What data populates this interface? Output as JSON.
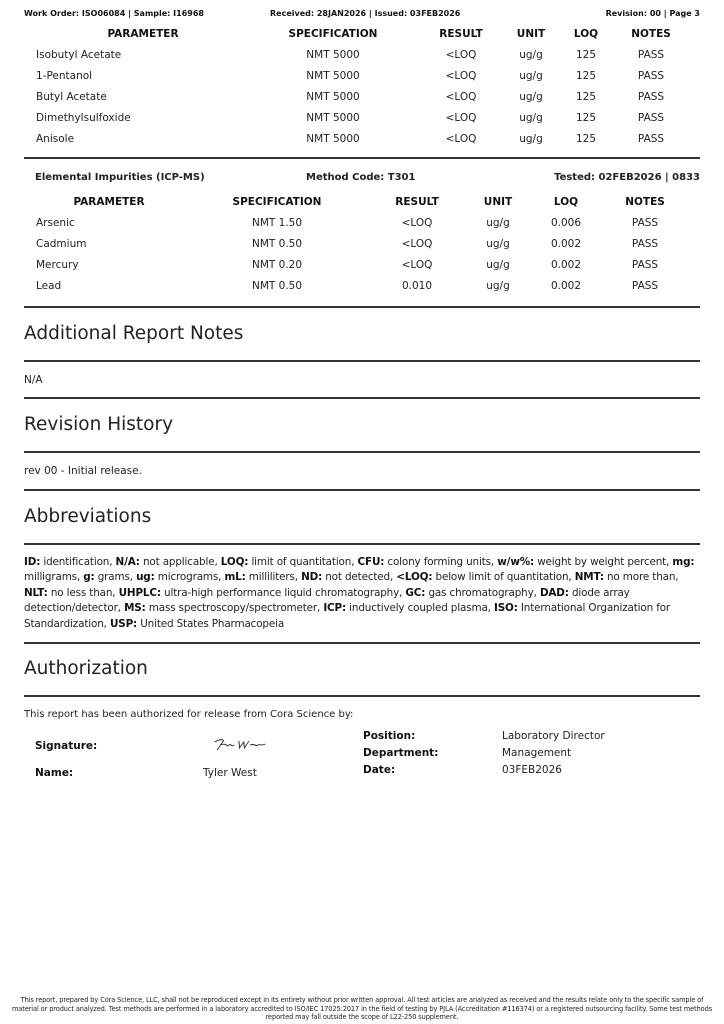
{
  "header": {
    "left": "Work Order: ISO06084 | Sample: I16968",
    "center": "Received: 28JAN2026 | Issued: 03FEB2026",
    "right": "Revision: 00 | Page 3"
  },
  "table1": {
    "columns": [
      "PARAMETER",
      "SPECIFICATION",
      "RESULT",
      "UNIT",
      "LOQ",
      "NOTES"
    ],
    "rows": [
      [
        "Isobutyl Acetate",
        "NMT 5000",
        "<LOQ",
        "ug/g",
        "125",
        "PASS"
      ],
      [
        "1-Pentanol",
        "NMT 5000",
        "<LOQ",
        "ug/g",
        "125",
        "PASS"
      ],
      [
        "Butyl Acetate",
        "NMT 5000",
        "<LOQ",
        "ug/g",
        "125",
        "PASS"
      ],
      [
        "Dimethylsulfoxide",
        "NMT 5000",
        "<LOQ",
        "ug/g",
        "125",
        "PASS"
      ],
      [
        "Anisole",
        "NMT 5000",
        "<LOQ",
        "ug/g",
        "125",
        "PASS"
      ]
    ]
  },
  "section2": {
    "title": "Elemental Impurities (ICP-MS)",
    "method": "Method Code: T301",
    "tested": "Tested: 02FEB2026 | 0833"
  },
  "table2": {
    "columns": [
      "PARAMETER",
      "SPECIFICATION",
      "RESULT",
      "UNIT",
      "LOQ",
      "NOTES"
    ],
    "rows": [
      [
        "Arsenic",
        "NMT 1.50",
        "<LOQ",
        "ug/g",
        "0.006",
        "PASS"
      ],
      [
        "Cadmium",
        "NMT 0.50",
        "<LOQ",
        "ug/g",
        "0.002",
        "PASS"
      ],
      [
        "Mercury",
        "NMT 0.20",
        "<LOQ",
        "ug/g",
        "0.002",
        "PASS"
      ],
      [
        "Lead",
        "NMT 0.50",
        "0.010",
        "ug/g",
        "0.002",
        "PASS"
      ]
    ]
  },
  "notes": {
    "title": "Additional Report Notes",
    "text": "N/A"
  },
  "revision": {
    "title": "Revision History",
    "text": "rev 00 - Initial release."
  },
  "abbreviations": {
    "title": "Abbreviations",
    "items": [
      [
        "ID:",
        "identification"
      ],
      [
        "N/A:",
        "not applicable"
      ],
      [
        "LOQ:",
        "limit of quantitation"
      ],
      [
        "CFU:",
        "colony forming units"
      ],
      [
        "w/w%:",
        "weight by weight percent"
      ],
      [
        "mg:",
        "milligrams"
      ],
      [
        "g:",
        "grams"
      ],
      [
        "ug:",
        "micrograms"
      ],
      [
        "mL:",
        "milliliters"
      ],
      [
        "ND:",
        "not detected"
      ],
      [
        "<LOQ:",
        "below limit of quantitation"
      ],
      [
        "NMT:",
        "no more than"
      ],
      [
        "NLT:",
        "no less than"
      ],
      [
        "UHPLC:",
        "ultra-high performance liquid chromatography"
      ],
      [
        "GC:",
        "gas chromatography"
      ],
      [
        "DAD:",
        "diode array detection/detector"
      ],
      [
        "MS:",
        "mass spectroscopy/spectrometer"
      ],
      [
        "ICP:",
        "inductively coupled plasma"
      ],
      [
        "ISO:",
        "International Organization for Standardization"
      ],
      [
        "USP:",
        "United States Pharmacopeia"
      ]
    ]
  },
  "authorization": {
    "title": "Authorization",
    "intro": "This report has been authorized for release from Cora Science by:",
    "signature_label": "Signature:",
    "signature": "Tyler West",
    "name_label": "Name:",
    "name": "Tyler West",
    "position_label": "Position:",
    "position": "Laboratory Director",
    "department_label": "Department:",
    "department": "Management",
    "date_label": "Date:",
    "date": "03FEB2026"
  },
  "footer": "This report, prepared by Cora Science, LLC, shall not be reproduced except in its entirety without prior written approval. All test articles are analyzed as received and the results relate only to the specific sample of material or product analyzed. Test methods are performed in a laboratory accredited to ISO/IEC 17025:2017 in the field of testing by PJLA (Accreditation #116374) or a registered outsourcing facility. Some test methods reported may fall outside the scope of L22-250 supplement."
}
